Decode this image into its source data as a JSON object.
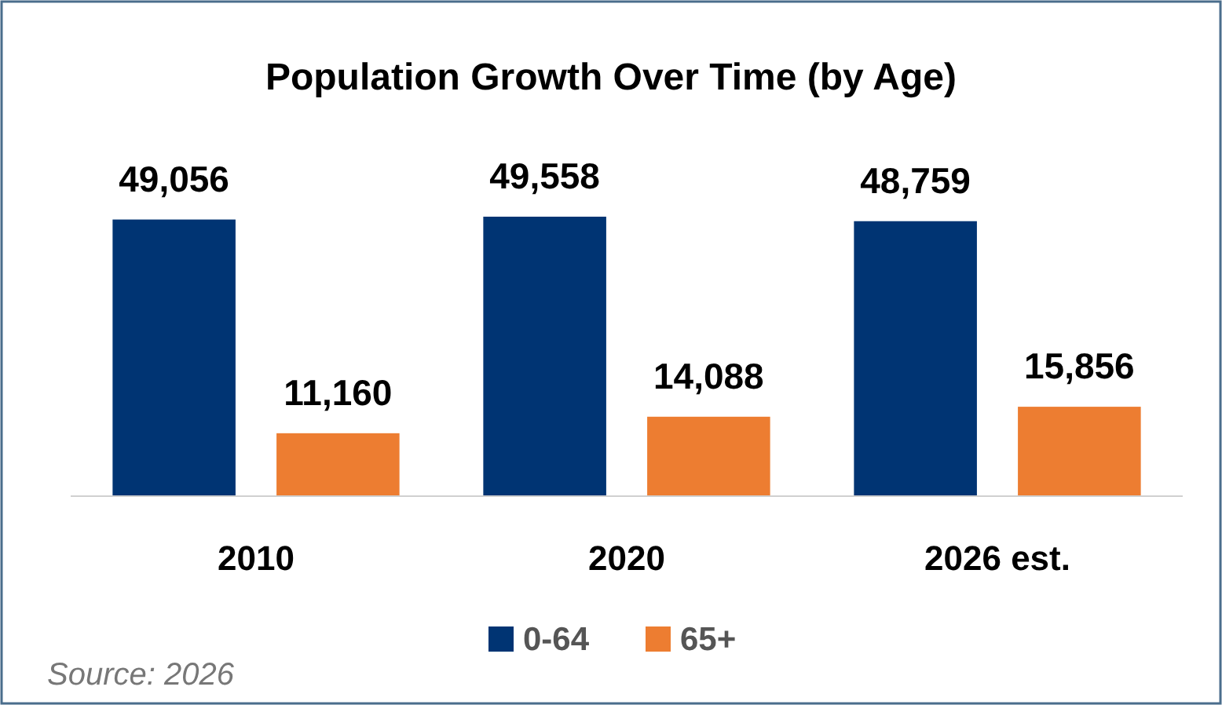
{
  "chart_data": {
    "type": "bar",
    "title": "Population Growth Over Time (by Age)",
    "categories": [
      "2010",
      "2020",
      "2026 est."
    ],
    "series": [
      {
        "name": "0-64",
        "color": "#003473",
        "values": [
          49056,
          49558,
          48759
        ],
        "value_labels": [
          "49,056",
          "49,558",
          "48,759"
        ]
      },
      {
        "name": "65+",
        "color": "#ed7d31",
        "values": [
          11160,
          14088,
          15856
        ],
        "value_labels": [
          "11,160",
          "14,088",
          "15,856"
        ]
      }
    ],
    "legend": "bottom",
    "annotations": [
      "Source: 2026"
    ]
  }
}
